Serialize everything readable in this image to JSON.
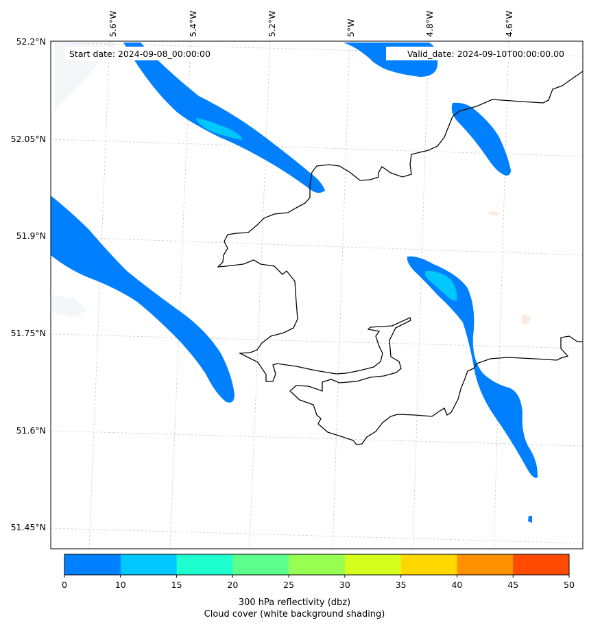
{
  "annotations": {
    "start_date": "Start date: 2024-09-08_00:00:00",
    "valid_date": "Valid_date: 2024-09-10T00:00:00.00"
  },
  "map": {
    "lon_ticks": [
      "5.6°W",
      "5.4°W",
      "5.2°W",
      "5°W",
      "4.8°W",
      "4.6°W"
    ],
    "lat_ticks": [
      "52.2°N",
      "52.05°N",
      "51.9°N",
      "51.75°N",
      "51.6°N",
      "51.45°N"
    ],
    "coastline_color": "#000000",
    "gridline_color": "#c8c8c8"
  },
  "colorbar": {
    "ticks": [
      "0",
      "10",
      "15",
      "20",
      "25",
      "30",
      "35",
      "40",
      "45",
      "50"
    ],
    "colors": [
      "#0080ff",
      "#00c8ff",
      "#1effd0",
      "#5cff8c",
      "#96ff52",
      "#d6ff1e",
      "#ffd800",
      "#ff9000",
      "#ff4a00"
    ],
    "label_line1": "300 hPa reflectivity (dbz)",
    "label_line2": "Cloud cover (white background shading)"
  }
}
